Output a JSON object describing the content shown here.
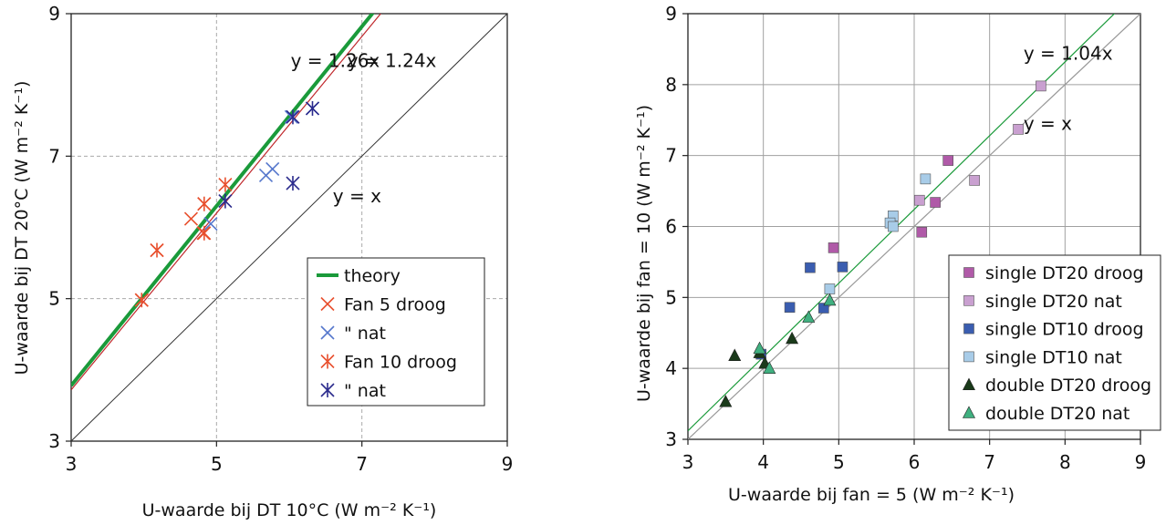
{
  "chart_data": [
    {
      "type": "scatter",
      "xlabel": "U-waarde bij DT 10°C (W m⁻² K⁻¹)",
      "ylabel": "U-waarde bij DT 20°C (W m⁻² K⁻¹)",
      "xlim": [
        3,
        9
      ],
      "ylim": [
        3,
        9
      ],
      "xticks": [
        "3",
        "5",
        "7",
        "9"
      ],
      "yticks": [
        "3",
        "5",
        "7",
        "9"
      ],
      "grid": true,
      "legend_position": "bottom-right",
      "lines": [
        {
          "name": "theory",
          "slope": 1.26,
          "color": "#1a9a3a",
          "width": 4
        },
        {
          "slope": 1.24,
          "color": "#c0282c",
          "width": 1.2
        },
        {
          "slope": 1.0,
          "color": "#333333",
          "width": 1
        }
      ],
      "annotations": [
        {
          "text": "y = 1.26x",
          "x": 6.02,
          "y": 8.25
        },
        {
          "text": "y = 1.24x",
          "x": 6.8,
          "y": 8.25
        },
        {
          "text": "y = x",
          "x": 6.6,
          "y": 6.35
        }
      ],
      "series": [
        {
          "name": "Fan 5 droog",
          "marker": "x",
          "color": "#e8502e",
          "points": [
            [
              3.97,
              4.98
            ],
            [
              4.18,
              5.68
            ],
            [
              4.65,
              6.12
            ],
            [
              4.82,
              5.92
            ],
            [
              4.83,
              6.33
            ]
          ]
        },
        {
          "name": "\" nat",
          "marker": "x",
          "color": "#5577cc",
          "points": [
            [
              4.92,
              6.05
            ],
            [
              5.68,
              6.73
            ],
            [
              5.77,
              6.82
            ],
            [
              6.03,
              7.55
            ],
            [
              6.32,
              7.67
            ]
          ]
        },
        {
          "name": "Fan 10 droog",
          "marker": "star",
          "color": "#e8502e",
          "points": [
            [
              3.97,
              4.98
            ],
            [
              4.18,
              5.68
            ],
            [
              4.83,
              5.92
            ],
            [
              4.83,
              6.33
            ],
            [
              5.12,
              6.6
            ]
          ]
        },
        {
          "name": "\" nat",
          "marker": "star",
          "color": "#2a2a8c",
          "points": [
            [
              5.12,
              6.37
            ],
            [
              6.05,
              7.55
            ],
            [
              6.05,
              6.62
            ],
            [
              6.32,
              7.67
            ]
          ]
        }
      ]
    },
    {
      "type": "scatter",
      "xlabel": "U-waarde bij fan = 5 (W m⁻² K⁻¹)",
      "ylabel": "U-waarde bij fan = 10 (W m⁻² K⁻¹)",
      "xlim": [
        3,
        9
      ],
      "ylim": [
        3,
        9
      ],
      "xticks": [
        "3",
        "4",
        "5",
        "6",
        "7",
        "8",
        "9"
      ],
      "yticks": [
        "3",
        "4",
        "5",
        "6",
        "7",
        "8",
        "9"
      ],
      "grid": true,
      "legend_position": "bottom-right",
      "lines": [
        {
          "slope": 1.04,
          "color": "#1a9a3a",
          "width": 1.2
        },
        {
          "slope": 1.0,
          "color": "#999999",
          "width": 1.2
        }
      ],
      "annotations": [
        {
          "text": "y = 1.04x",
          "x": 7.45,
          "y": 8.35
        },
        {
          "text": "y = x",
          "x": 7.45,
          "y": 7.36
        }
      ],
      "series": [
        {
          "name": "single DT20 droog",
          "marker": "square",
          "color": "#b05aa8",
          "points": [
            [
              6.45,
              6.93
            ],
            [
              4.93,
              5.7
            ],
            [
              6.28,
              6.34
            ],
            [
              6.1,
              5.92
            ]
          ]
        },
        {
          "name": "single DT20 nat",
          "marker": "square",
          "color": "#c9a0d0",
          "points": [
            [
              7.68,
              7.98
            ],
            [
              7.38,
              7.37
            ],
            [
              6.8,
              6.65
            ],
            [
              6.07,
              6.37
            ]
          ]
        },
        {
          "name": "single DT10 droog",
          "marker": "square",
          "color": "#3a5db0",
          "points": [
            [
              4.62,
              5.42
            ],
            [
              5.05,
              5.43
            ],
            [
              4.35,
              4.86
            ],
            [
              4.8,
              4.85
            ],
            [
              3.97,
              4.2
            ]
          ]
        },
        {
          "name": "single DT10 nat",
          "marker": "square",
          "color": "#a8cce8",
          "points": [
            [
              6.15,
              6.67
            ],
            [
              5.72,
              6.15
            ],
            [
              5.68,
              6.05
            ],
            [
              5.72,
              6.0
            ],
            [
              4.88,
              5.12
            ]
          ]
        },
        {
          "name": "double DT20 droog",
          "marker": "triangle",
          "color": "#1a3a1a",
          "points": [
            [
              3.62,
              4.18
            ],
            [
              3.5,
              3.53
            ],
            [
              4.02,
              4.07
            ],
            [
              4.38,
              4.42
            ],
            [
              3.95,
              4.22
            ]
          ]
        },
        {
          "name": "double DT20 nat",
          "marker": "triangle",
          "color": "#40b080",
          "points": [
            [
              3.95,
              4.28
            ],
            [
              4.08,
              4.0
            ],
            [
              4.6,
              4.72
            ],
            [
              4.88,
              4.96
            ]
          ]
        }
      ]
    }
  ]
}
